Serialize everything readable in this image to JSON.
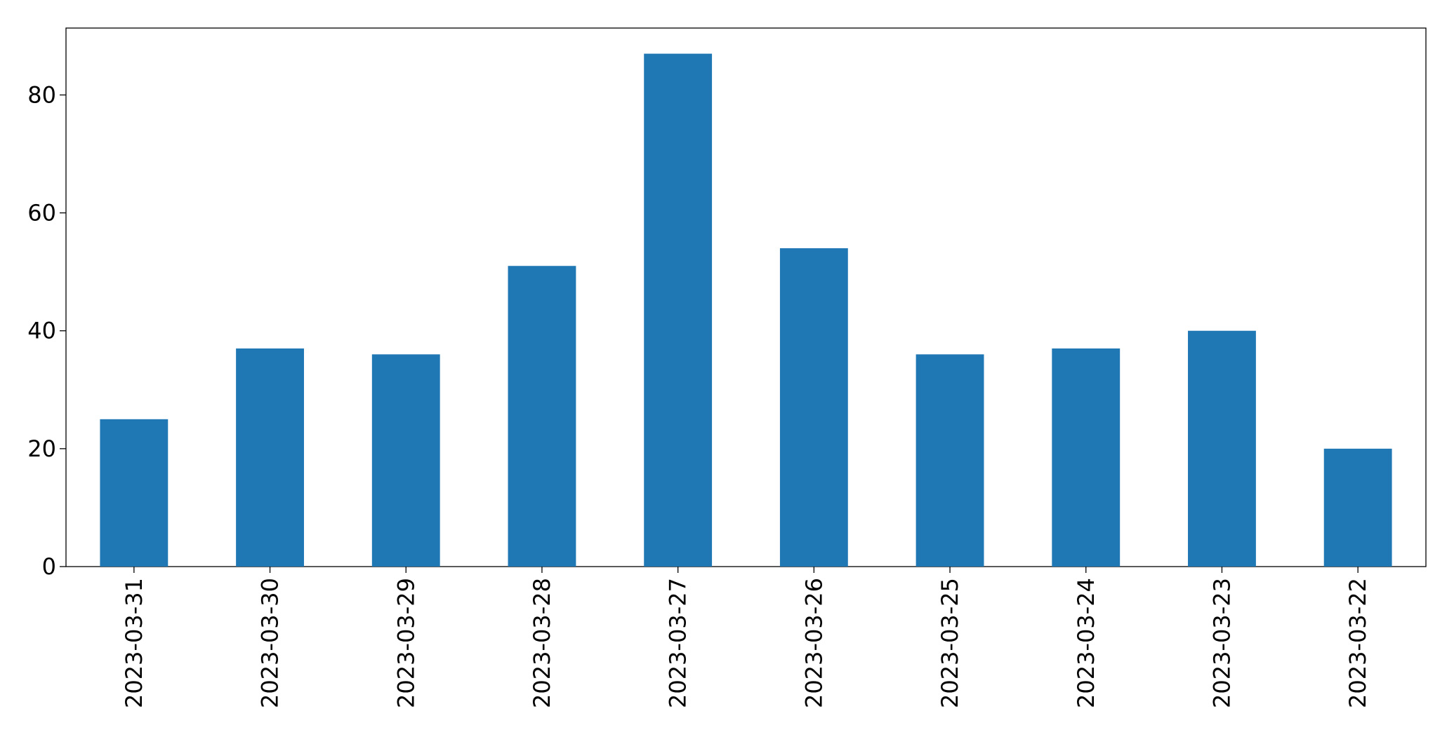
{
  "chart_data": {
    "type": "bar",
    "categories": [
      "2023-03-31",
      "2023-03-30",
      "2023-03-29",
      "2023-03-28",
      "2023-03-27",
      "2023-03-26",
      "2023-03-25",
      "2023-03-24",
      "2023-03-23",
      "2023-03-22"
    ],
    "values": [
      25,
      37,
      36,
      51,
      87,
      54,
      36,
      37,
      40,
      20
    ],
    "color": "#1f77b4",
    "ylim": [
      0,
      91.35
    ],
    "yticks": [
      0,
      20,
      40,
      60,
      80
    ],
    "grid": false
  }
}
